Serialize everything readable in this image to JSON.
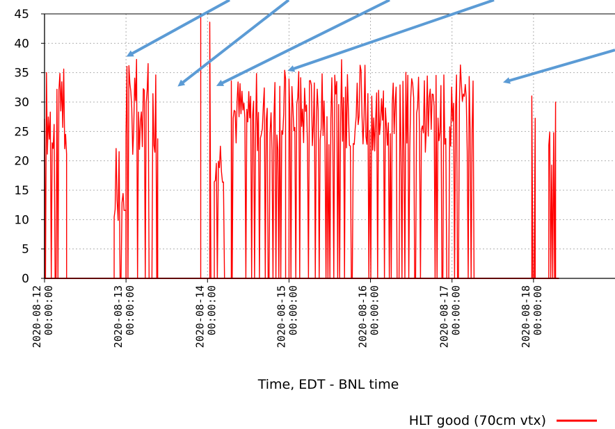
{
  "chart_data": {
    "type": "line",
    "title": "",
    "xlabel": "Time, EDT - BNL time",
    "ylabel": "",
    "ylim": [
      0,
      45
    ],
    "yticks": [
      0,
      5,
      10,
      15,
      20,
      25,
      30,
      35,
      40,
      45
    ],
    "xlim": [
      "2020-08-12 00:00:00",
      "2020-08-19 00:00:00"
    ],
    "xticks": [
      {
        "date": "2020-08-12",
        "time": "00:00:00"
      },
      {
        "date": "2020-08-13",
        "time": "00:00:00"
      },
      {
        "date": "2020-08-14",
        "time": "00:00:00"
      },
      {
        "date": "2020-08-15",
        "time": "00:00:00"
      },
      {
        "date": "2020-08-16",
        "time": "00:00:00"
      },
      {
        "date": "2020-08-17",
        "time": "00:00:00"
      },
      {
        "date": "2020-08-18",
        "time": "00:00:00"
      }
    ],
    "grid": true,
    "legend_position": "bottom-right",
    "series": [
      {
        "name": "HLT good (70cm vtx)",
        "color": "#ff0000",
        "segments": [
          {
            "start": "2020-08-12 00:00",
            "end": "2020-08-12 06:30",
            "min": 0,
            "max": 38.2,
            "typical": 31
          },
          {
            "start": "2020-08-12 20:30",
            "end": "2020-08-13 00:00",
            "min": 0,
            "max": 23.5,
            "typical": 14
          },
          {
            "start": "2020-08-13 00:00",
            "end": "2020-08-13 09:20",
            "min": 0,
            "max": 37.5,
            "typical": 32
          },
          {
            "start": "2020-08-13 21:55",
            "end": "2020-08-13 22:05",
            "min": 0,
            "max": 45,
            "typical": 45
          },
          {
            "start": "2020-08-14 00:40",
            "end": "2020-08-14 01:40",
            "min": 0,
            "max": 45,
            "typical": 45
          },
          {
            "start": "2020-08-14 02:00",
            "end": "2020-08-14 05:00",
            "min": 0,
            "max": 33.5,
            "typical": 24
          },
          {
            "start": "2020-08-14 07:00",
            "end": "2020-08-14 23:00",
            "min": 0,
            "max": 37.5,
            "typical": 33
          },
          {
            "start": "2020-08-15 00:00",
            "end": "2020-08-17 06:30",
            "min": 0,
            "max": 37.5,
            "typical": 33
          },
          {
            "start": "2020-08-17 23:30",
            "end": "2020-08-18 00:30",
            "min": 0,
            "max": 32,
            "typical": 28
          },
          {
            "start": "2020-08-18 04:30",
            "end": "2020-08-18 06:30",
            "min": 0,
            "max": 31.8,
            "typical": 27
          }
        ]
      }
    ],
    "annotations": [
      {
        "type": "arrow",
        "color": "#5b9bd5",
        "points_to": {
          "x": "2020-08-13 01:00",
          "y": 38
        }
      },
      {
        "type": "arrow",
        "color": "#5b9bd5",
        "points_to": {
          "x": "2020-08-13 16:00",
          "y": 33
        }
      },
      {
        "type": "arrow",
        "color": "#5b9bd5",
        "points_to": {
          "x": "2020-08-14 03:30",
          "y": 33
        }
      },
      {
        "type": "arrow",
        "color": "#5b9bd5",
        "points_to": {
          "x": "2020-08-15 00:30",
          "y": 35.5
        }
      },
      {
        "type": "arrow",
        "color": "#5b9bd5",
        "points_to": {
          "x": "2020-08-17 16:00",
          "y": 33.5
        }
      }
    ]
  },
  "legend": {
    "label": "HLT good (70cm vtx)"
  }
}
